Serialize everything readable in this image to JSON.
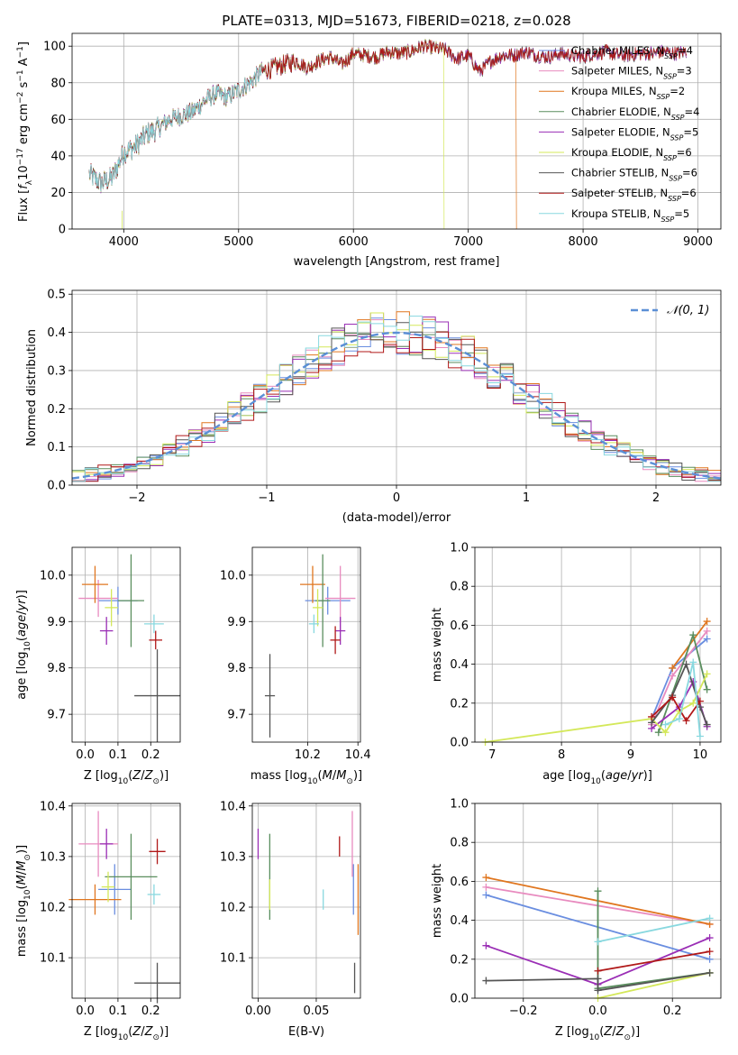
{
  "colors": {
    "chabrier_miles": "#6a8ee0",
    "salpeter_miles": "#e88bbf",
    "kroupa_miles": "#e0761f",
    "chabrier_elodie": "#5a8e5e",
    "salpeter_elodie": "#9a2eb5",
    "kroupa_elodie": "#d4e85a",
    "chabrier_stelib": "#555555",
    "salpeter_stelib": "#b01818",
    "kroupa_stelib": "#88d8df",
    "gauss": "#5b8fd6"
  },
  "chart_data": [
    {
      "type": "line",
      "title": "PLATE=0313, MJD=51673, FIBERID=0218, z=0.028",
      "xlabel": "wavelength [Angstrom, rest frame]",
      "ylabel": "Flux [fλ10⁻¹⁷ erg cm⁻² s⁻¹ A⁻¹]",
      "xlim": [
        3550,
        9200
      ],
      "ylim": [
        0,
        107
      ],
      "xticks": [
        "4000",
        "5000",
        "6000",
        "7000",
        "8000",
        "9000"
      ],
      "yticks": [
        "0",
        "20",
        "40",
        "60",
        "80",
        "100"
      ],
      "legend_placement": "top-right",
      "spectrum_envelope": {
        "x": [
          3700,
          3800,
          3900,
          4000,
          4100,
          4200,
          4300,
          4400,
          4500,
          4600,
          4700,
          4800,
          4900,
          5000,
          5100,
          5200,
          5300,
          5400,
          5500,
          5600,
          5700,
          5800,
          5900,
          6000,
          6100,
          6200,
          6300,
          6400,
          6500,
          6600,
          6700,
          6800,
          6900,
          7000,
          7100,
          7200,
          7300,
          7400,
          7500,
          7600,
          7700,
          7800,
          7900,
          8000,
          8100,
          8200,
          8300,
          8400,
          8500,
          8600,
          8700,
          8800,
          8900
        ],
        "y": [
          30,
          25,
          28,
          42,
          45,
          52,
          55,
          60,
          62,
          64,
          70,
          74,
          72,
          76,
          80,
          86,
          88,
          90,
          92,
          88,
          92,
          94,
          90,
          96,
          95,
          94,
          97,
          96,
          97,
          100,
          99,
          98,
          93,
          95,
          86,
          92,
          95,
          95,
          97,
          95,
          94,
          96,
          95,
          94,
          96,
          97,
          95,
          95,
          96,
          96,
          97,
          96,
          97
        ]
      },
      "series": [
        {
          "name_main": "Chabrier MILES, N",
          "name_sub": "SSP",
          "name_tail": "=4"
        },
        {
          "name_main": "Salpeter MILES, N",
          "name_sub": "SSP",
          "name_tail": "=3"
        },
        {
          "name_main": "Kroupa MILES, N",
          "name_sub": "SSP",
          "name_tail": "=2",
          "drop_at": 7420
        },
        {
          "name_main": "Chabrier ELODIE, N",
          "name_sub": "SSP",
          "name_tail": "=4"
        },
        {
          "name_main": "Salpeter ELODIE, N",
          "name_sub": "SSP",
          "name_tail": "=5"
        },
        {
          "name_main": "Kroupa ELODIE, N",
          "name_sub": "SSP",
          "name_tail": "=6",
          "drop_at": 6790
        },
        {
          "name_main": "Chabrier STELIB, N",
          "name_sub": "SSP",
          "name_tail": "=6"
        },
        {
          "name_main": "Salpeter STELIB, N",
          "name_sub": "SSP",
          "name_tail": "=6"
        },
        {
          "name_main": "Kroupa STELIB, N",
          "name_sub": "SSP",
          "name_tail": "=5"
        }
      ]
    },
    {
      "type": "line",
      "xlabel": "(data-model)/error",
      "ylabel": "Normed distribution",
      "xlim": [
        -2.5,
        2.5
      ],
      "ylim": [
        0,
        0.51
      ],
      "xticks": [
        "−2",
        "−1",
        "0",
        "1",
        "2"
      ],
      "yticks": [
        "0.0",
        "0.1",
        "0.2",
        "0.3",
        "0.4",
        "0.5"
      ],
      "legend": "𝒩(0, 1)",
      "legend_placement": "top-right",
      "bin_width": 0.1,
      "bin_start": -2.5
    },
    {
      "type": "scatter",
      "xlabel": "Z [log10(Z/Z⊙)]",
      "ylabel": "age  [log10(age/yr)]",
      "xlim": [
        -0.04,
        0.29
      ],
      "ylim": [
        9.64,
        10.06
      ],
      "xticks": [
        "0.0",
        "0.1",
        "0.2"
      ],
      "yticks": [
        "9.7",
        "9.8",
        "9.9",
        "10.0"
      ],
      "points": [
        {
          "x": 0.1,
          "y": 9.945,
          "xerr": 0.06,
          "yerr": 0.03
        },
        {
          "x": 0.04,
          "y": 9.95,
          "xerr": 0.06,
          "yerr": 0.04
        },
        {
          "x": 0.03,
          "y": 9.98,
          "xerr": 0.04,
          "yerr": 0.04
        },
        {
          "x": 0.14,
          "y": 9.945,
          "xerr": 0.04,
          "yerr": 0.1
        },
        {
          "x": 0.065,
          "y": 9.88,
          "xerr": 0.02,
          "yerr": 0.03
        },
        {
          "x": 0.08,
          "y": 9.93,
          "xerr": 0.02,
          "yerr": 0.04
        },
        {
          "x": 0.22,
          "y": 9.74,
          "xerr": 0.07,
          "yerr": 0.1
        },
        {
          "x": 0.215,
          "y": 9.86,
          "xerr": 0.02,
          "yerr": 0.02
        },
        {
          "x": 0.21,
          "y": 9.895,
          "xerr": 0.03,
          "yerr": 0.02
        }
      ]
    },
    {
      "type": "scatter",
      "xlabel": "mass [log10(M/M⊙)]",
      "xlim": [
        9.98,
        10.41
      ],
      "ylim": [
        9.64,
        10.06
      ],
      "xticks": [
        "10.2",
        "10.4"
      ],
      "yticks": [
        "9.7",
        "9.8",
        "9.9",
        "10.0"
      ],
      "points": [
        {
          "x": 10.28,
          "y": 9.945,
          "xerr": 0.09,
          "yerr": 0.03
        },
        {
          "x": 10.33,
          "y": 9.95,
          "xerr": 0.06,
          "yerr": 0.07
        },
        {
          "x": 10.22,
          "y": 9.98,
          "xerr": 0.05,
          "yerr": 0.04
        },
        {
          "x": 10.26,
          "y": 9.945,
          "xerr": 0.03,
          "yerr": 0.1
        },
        {
          "x": 10.33,
          "y": 9.88,
          "xerr": 0.02,
          "yerr": 0.03
        },
        {
          "x": 10.24,
          "y": 9.93,
          "xerr": 0.02,
          "yerr": 0.04
        },
        {
          "x": 10.05,
          "y": 9.74,
          "xerr": 0.02,
          "yerr": 0.09
        },
        {
          "x": 10.31,
          "y": 9.86,
          "xerr": 0.02,
          "yerr": 0.03
        },
        {
          "x": 10.225,
          "y": 9.895,
          "xerr": 0.02,
          "yerr": 0.02
        }
      ]
    },
    {
      "type": "line",
      "xlabel": "age  [log10(age/yr)]",
      "ylabel": "mass weight",
      "xlim": [
        6.75,
        10.3
      ],
      "ylim": [
        0,
        1.0
      ],
      "xticks": [
        "7",
        "8",
        "9",
        "10"
      ],
      "yticks": [
        "0.0",
        "0.2",
        "0.4",
        "0.6",
        "0.8",
        "1.0"
      ],
      "series": [
        {
          "x": [
            9.3,
            9.6,
            10.1
          ],
          "y": [
            0.12,
            0.38,
            0.53
          ]
        },
        {
          "x": [
            9.3,
            9.6,
            10.1
          ],
          "y": [
            0.09,
            0.34,
            0.57
          ]
        },
        {
          "x": [
            9.6,
            10.1
          ],
          "y": [
            0.38,
            0.62
          ]
        },
        {
          "x": [
            9.4,
            9.9,
            10.1
          ],
          "y": [
            0.05,
            0.55,
            0.27
          ]
        },
        {
          "x": [
            9.3,
            9.7,
            9.9,
            10.1
          ],
          "y": [
            0.07,
            0.18,
            0.31,
            0.08
          ]
        },
        {
          "x": [
            6.9,
            9.3,
            9.5,
            9.7,
            9.9,
            10.1
          ],
          "y": [
            0.0,
            0.12,
            0.05,
            0.16,
            0.2,
            0.35
          ]
        },
        {
          "x": [
            9.3,
            9.6,
            9.8,
            10.0,
            10.1
          ],
          "y": [
            0.1,
            0.24,
            0.4,
            0.18,
            0.09
          ]
        },
        {
          "x": [
            9.3,
            9.6,
            9.8,
            10.0
          ],
          "y": [
            0.13,
            0.23,
            0.11,
            0.21
          ]
        },
        {
          "x": [
            9.5,
            9.7,
            9.9,
            10.0
          ],
          "y": [
            0.09,
            0.12,
            0.41,
            0.03
          ]
        }
      ]
    },
    {
      "type": "scatter",
      "xlabel": "Z [log10(Z/Z⊙)]",
      "ylabel": "mass [log10(M/M⊙)]",
      "xlim": [
        -0.04,
        0.29
      ],
      "ylim": [
        10.02,
        10.405
      ],
      "xticks": [
        "0.0",
        "0.1",
        "0.2"
      ],
      "yticks": [
        "10.1",
        "10.2",
        "10.3",
        "10.4"
      ],
      "points": [
        {
          "x": 0.09,
          "y": 10.235,
          "xerr": 0.05,
          "yerr": 0.05
        },
        {
          "x": 0.04,
          "y": 10.325,
          "xerr": 0.06,
          "yerr": 0.065
        },
        {
          "x": 0.03,
          "y": 10.215,
          "xerr": 0.08,
          "yerr": 0.03
        },
        {
          "x": 0.14,
          "y": 10.26,
          "xerr": 0.08,
          "yerr": 0.085
        },
        {
          "x": 0.065,
          "y": 10.325,
          "xerr": 0.02,
          "yerr": 0.03
        },
        {
          "x": 0.07,
          "y": 10.24,
          "xerr": 0.02,
          "yerr": 0.03
        },
        {
          "x": 0.22,
          "y": 10.05,
          "xerr": 0.07,
          "yerr": 0.04
        },
        {
          "x": 0.22,
          "y": 10.31,
          "xerr": 0.025,
          "yerr": 0.025
        },
        {
          "x": 0.21,
          "y": 10.225,
          "xerr": 0.02,
          "yerr": 0.02
        }
      ]
    },
    {
      "type": "scatter",
      "xlabel": "E(B-V)",
      "xlim": [
        -0.005,
        0.088
      ],
      "ylim": [
        10.02,
        10.405
      ],
      "xticks": [
        "0.00",
        "0.05"
      ],
      "yticks": [
        "10.1",
        "10.2",
        "10.3",
        "10.4"
      ],
      "points": [
        {
          "x": 0.082,
          "y": 10.235,
          "yerr": 0.05
        },
        {
          "x": 0.081,
          "y": 10.325,
          "yerr": 0.065
        },
        {
          "x": 0.086,
          "y": 10.215,
          "yerr": 0.07
        },
        {
          "x": 0.01,
          "y": 10.26,
          "yerr": 0.085
        },
        {
          "x": 0.0,
          "y": 10.325,
          "yerr": 0.03
        },
        {
          "x": 0.01,
          "y": 10.225,
          "yerr": 0.03
        },
        {
          "x": 0.083,
          "y": 10.06,
          "yerr": 0.03
        },
        {
          "x": 0.07,
          "y": 10.32,
          "yerr": 0.02
        },
        {
          "x": 0.056,
          "y": 10.215,
          "yerr": 0.02
        }
      ]
    },
    {
      "type": "line",
      "xlabel": "Z [log10(Z/Z⊙)]",
      "ylabel": "mass weight",
      "xlim": [
        -0.33,
        0.33
      ],
      "ylim": [
        0,
        1.0
      ],
      "xticks": [
        "−0.2",
        "0.0",
        "0.2"
      ],
      "yticks": [
        "0.0",
        "0.2",
        "0.4",
        "0.6",
        "0.8",
        "1.0"
      ],
      "series": [
        {
          "x": [
            -0.3,
            0.3
          ],
          "y": [
            0.53,
            0.2
          ]
        },
        {
          "x": [
            -0.3,
            0.3
          ],
          "y": [
            0.57,
            0.38
          ]
        },
        {
          "x": [
            -0.3,
            0.3
          ],
          "y": [
            0.62,
            0.38
          ]
        },
        {
          "x": [
            0.0,
            0.0,
            0.3
          ],
          "y": [
            0.55,
            0.05,
            0.13
          ]
        },
        {
          "x": [
            -0.3,
            0.0,
            0.3
          ],
          "y": [
            0.27,
            0.07,
            0.31
          ]
        },
        {
          "x": [
            0.0,
            0.3
          ],
          "y": [
            0.0,
            0.13
          ]
        },
        {
          "x": [
            -0.3,
            0.0,
            0.0,
            0.3
          ],
          "y": [
            0.09,
            0.1,
            0.04,
            0.13
          ]
        },
        {
          "x": [
            0.0,
            0.3
          ],
          "y": [
            0.14,
            0.24
          ]
        },
        {
          "x": [
            0.0,
            0.3
          ],
          "y": [
            0.29,
            0.41
          ]
        }
      ]
    }
  ]
}
